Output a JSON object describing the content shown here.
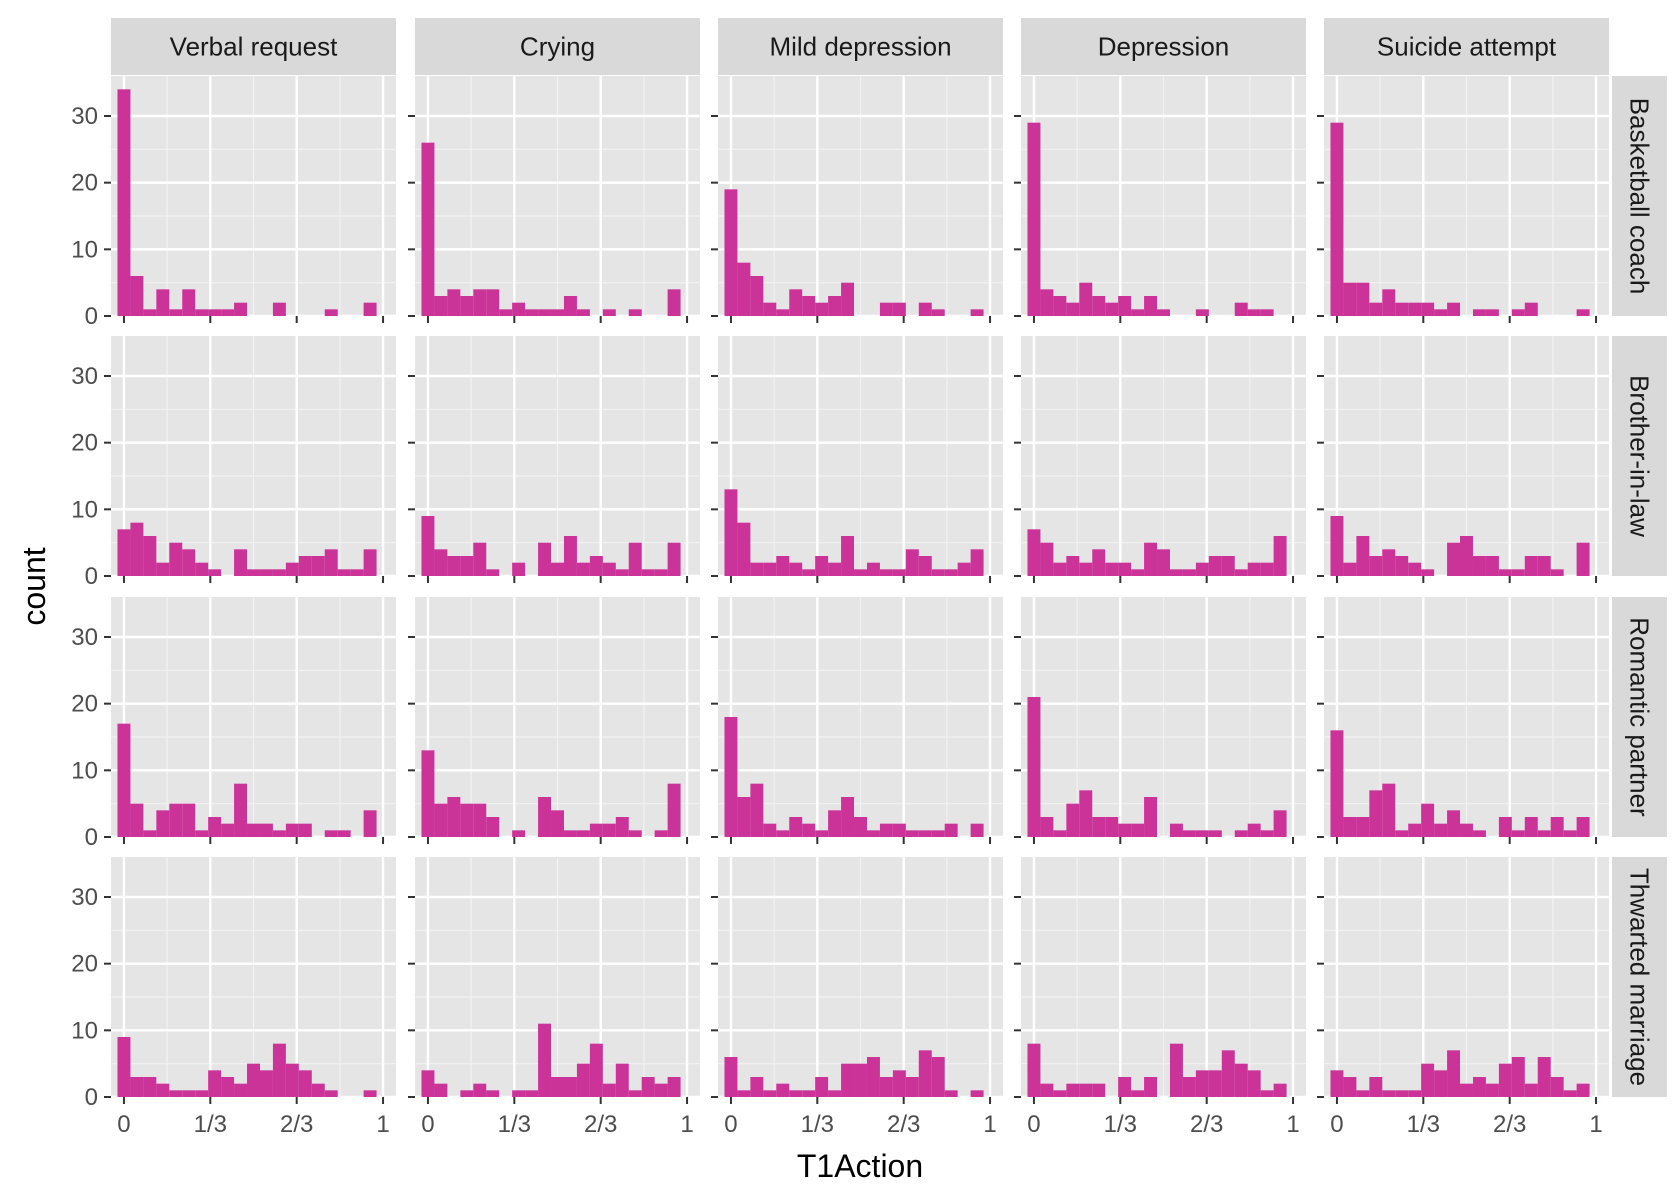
{
  "chart_data": {
    "type": "bar",
    "subtype": "faceted-histogram",
    "xlabel": "T1Action",
    "ylabel": "count",
    "bin_count": 21,
    "bin_width": 0.05,
    "bin_centers_range": [
      0,
      1
    ],
    "xlim": [
      -0.05,
      1.05
    ],
    "ylim": [
      0,
      36
    ],
    "x_ticks": [
      {
        "value": 0,
        "label": "0"
      },
      {
        "value": 0.3333,
        "label": "1/3"
      },
      {
        "value": 0.6667,
        "label": "2/3"
      },
      {
        "value": 1,
        "label": "1"
      }
    ],
    "y_ticks": [
      {
        "value": 0,
        "label": "0"
      },
      {
        "value": 10,
        "label": "10"
      },
      {
        "value": 20,
        "label": "20"
      },
      {
        "value": 30,
        "label": "30"
      }
    ],
    "grid": true,
    "colors": {
      "bar": "#CC3399",
      "panel_bg": "#E5E5E5",
      "strip_bg": "#D9D9D9",
      "grid_major": "#FFFFFF",
      "grid_minor": "#F2F2F2"
    },
    "columns": [
      "Verbal request",
      "Crying",
      "Mild depression",
      "Depression",
      "Suicide attempt"
    ],
    "rows": [
      "Basketball coach",
      "Brother-in-law",
      "Romantic partner",
      "Thwarted marriage"
    ],
    "panels": [
      [
        [
          34,
          6,
          1,
          4,
          1,
          4,
          1,
          1,
          1,
          2,
          0,
          0,
          2,
          0,
          0,
          0,
          1,
          0,
          0,
          2,
          0
        ],
        [
          26,
          3,
          4,
          3,
          4,
          4,
          1,
          2,
          1,
          1,
          1,
          3,
          1,
          0,
          1,
          0,
          1,
          0,
          0,
          4,
          0
        ],
        [
          19,
          8,
          6,
          2,
          1,
          4,
          3,
          2,
          3,
          5,
          0,
          0,
          2,
          2,
          0,
          2,
          1,
          0,
          0,
          1,
          0
        ],
        [
          29,
          4,
          3,
          2,
          5,
          3,
          2,
          3,
          1,
          3,
          1,
          0,
          0,
          1,
          0,
          0,
          2,
          1,
          1,
          0,
          0
        ],
        [
          29,
          5,
          5,
          2,
          4,
          2,
          2,
          2,
          1,
          2,
          0,
          1,
          1,
          0,
          1,
          2,
          0,
          0,
          0,
          1,
          0
        ]
      ],
      [
        [
          7,
          8,
          6,
          2,
          5,
          4,
          2,
          1,
          0,
          4,
          1,
          1,
          1,
          2,
          3,
          3,
          4,
          1,
          1,
          4,
          0
        ],
        [
          9,
          4,
          3,
          3,
          5,
          1,
          0,
          2,
          0,
          5,
          2,
          6,
          2,
          3,
          2,
          1,
          5,
          1,
          1,
          5,
          0
        ],
        [
          13,
          8,
          2,
          2,
          3,
          2,
          1,
          3,
          2,
          6,
          1,
          2,
          1,
          1,
          4,
          3,
          1,
          1,
          2,
          4,
          0
        ],
        [
          7,
          5,
          2,
          3,
          2,
          4,
          2,
          2,
          1,
          5,
          4,
          1,
          1,
          2,
          3,
          3,
          1,
          2,
          2,
          6,
          0
        ],
        [
          9,
          2,
          6,
          3,
          4,
          3,
          2,
          1,
          0,
          5,
          6,
          3,
          3,
          1,
          1,
          3,
          3,
          1,
          0,
          5,
          0
        ]
      ],
      [
        [
          17,
          5,
          1,
          4,
          5,
          5,
          1,
          3,
          2,
          8,
          2,
          2,
          1,
          2,
          2,
          0,
          1,
          1,
          0,
          4,
          0
        ],
        [
          13,
          5,
          6,
          5,
          5,
          3,
          0,
          1,
          0,
          6,
          4,
          1,
          1,
          2,
          2,
          3,
          1,
          0,
          1,
          8,
          0
        ],
        [
          18,
          6,
          8,
          2,
          1,
          3,
          2,
          1,
          4,
          6,
          3,
          1,
          2,
          2,
          1,
          1,
          1,
          2,
          0,
          2,
          0
        ],
        [
          21,
          3,
          1,
          5,
          7,
          3,
          3,
          2,
          2,
          6,
          0,
          2,
          1,
          1,
          1,
          0,
          1,
          2,
          1,
          4,
          0
        ],
        [
          16,
          3,
          3,
          7,
          8,
          1,
          2,
          5,
          2,
          4,
          2,
          1,
          0,
          3,
          1,
          3,
          1,
          3,
          1,
          3,
          0
        ]
      ],
      [
        [
          9,
          3,
          3,
          2,
          1,
          1,
          1,
          4,
          3,
          2,
          5,
          4,
          8,
          5,
          4,
          2,
          1,
          0,
          0,
          1,
          0
        ],
        [
          4,
          2,
          0,
          1,
          2,
          1,
          0,
          1,
          1,
          11,
          3,
          3,
          5,
          8,
          2,
          5,
          1,
          3,
          2,
          3,
          0
        ],
        [
          6,
          1,
          3,
          1,
          2,
          1,
          1,
          3,
          1,
          5,
          5,
          6,
          3,
          4,
          3,
          7,
          6,
          1,
          0,
          1,
          0
        ],
        [
          8,
          2,
          1,
          2,
          2,
          2,
          0,
          3,
          1,
          3,
          0,
          8,
          3,
          4,
          4,
          7,
          5,
          4,
          1,
          2,
          0
        ],
        [
          4,
          3,
          1,
          3,
          1,
          1,
          1,
          5,
          4,
          7,
          2,
          3,
          2,
          5,
          6,
          2,
          6,
          3,
          1,
          2,
          0
        ]
      ]
    ]
  }
}
